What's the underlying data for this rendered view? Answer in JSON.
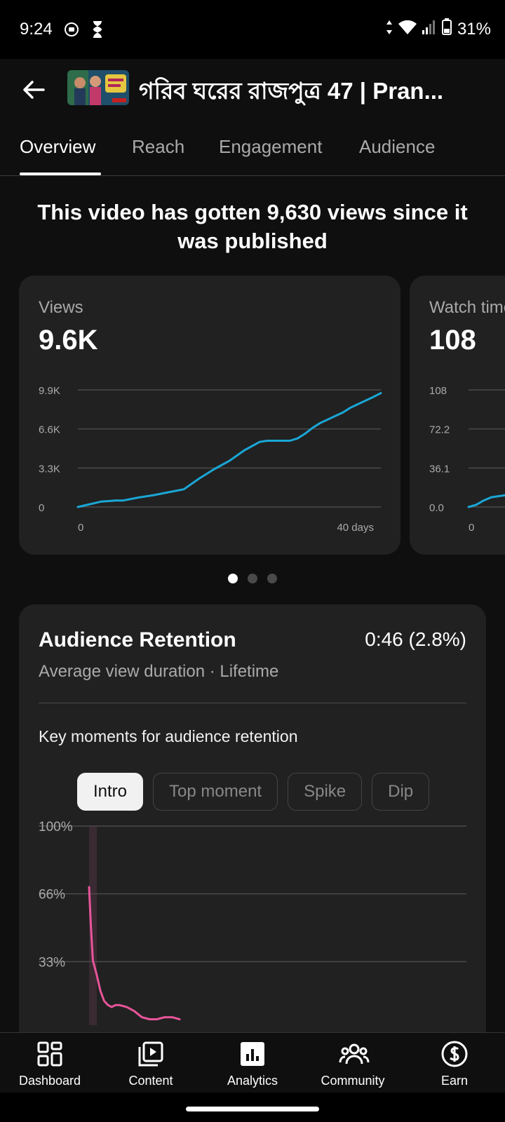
{
  "status_bar": {
    "time": "9:24",
    "battery": "31%"
  },
  "header": {
    "title": "গরিব ঘরের রাজপুত্র 47 | Pran..."
  },
  "tabs": [
    {
      "label": "Overview"
    },
    {
      "label": "Reach"
    },
    {
      "label": "Engagement"
    },
    {
      "label": "Audience"
    }
  ],
  "headline": "This video has gotten 9,630 views since it was published",
  "views_card": {
    "label": "Views",
    "value": "9.6K",
    "chart_data": {
      "type": "line",
      "y_ticks": [
        "9.9K",
        "6.6K",
        "3.3K",
        "0"
      ],
      "x_ticks": [
        "0",
        "40 days"
      ],
      "ylim": [
        0,
        9900
      ],
      "xlim": [
        0,
        40
      ],
      "color": "#1aa7d6",
      "x": [
        0,
        1,
        3,
        5,
        6,
        8,
        10,
        12,
        14,
        16,
        18,
        20,
        22,
        24,
        25,
        26,
        28,
        29,
        30,
        31,
        32,
        33,
        34,
        35,
        36,
        37,
        38,
        39,
        40
      ],
      "y": [
        0,
        150,
        450,
        550,
        550,
        800,
        1000,
        1250,
        1500,
        2400,
        3200,
        3900,
        4800,
        5500,
        5600,
        5600,
        5600,
        5800,
        6200,
        6700,
        7100,
        7400,
        7700,
        8000,
        8400,
        8700,
        9000,
        9300,
        9630
      ]
    }
  },
  "watch_card": {
    "label": "Watch time (hours)",
    "value": "108",
    "chart_data": {
      "type": "line",
      "y_ticks": [
        "108",
        "72.2",
        "36.1",
        "0.0"
      ],
      "x_ticks": [
        "0"
      ],
      "ylim": [
        0,
        108
      ],
      "color": "#1aa7d6",
      "x": [
        0,
        1,
        2,
        3,
        4,
        5
      ],
      "y": [
        0,
        2,
        6,
        9,
        10,
        11
      ]
    }
  },
  "retention": {
    "title": "Audience Retention",
    "value": "0:46 (2.8%)",
    "subtitle": "Average view duration · Lifetime",
    "key_moments": "Key moments for audience retention",
    "chips": [
      {
        "label": "Intro",
        "active": true
      },
      {
        "label": "Top moment",
        "active": false
      },
      {
        "label": "Spike",
        "active": false
      },
      {
        "label": "Dip",
        "active": false
      }
    ],
    "chart_data": {
      "type": "line",
      "y_ticks": [
        "100%",
        "66%",
        "33%"
      ],
      "ylim": [
        0,
        100
      ],
      "xlim": [
        0,
        100
      ],
      "color": "#e8559a",
      "x": [
        0,
        0.5,
        1,
        2,
        3,
        4,
        5,
        6,
        7,
        8,
        10,
        12,
        14,
        16,
        18,
        20,
        22,
        24
      ],
      "y": [
        70,
        50,
        34,
        27,
        19,
        14,
        12,
        11,
        12,
        12,
        11,
        9,
        6,
        5,
        5,
        6,
        6,
        5
      ]
    }
  },
  "nav": [
    {
      "label": "Dashboard",
      "icon": "dashboard-icon"
    },
    {
      "label": "Content",
      "icon": "content-icon"
    },
    {
      "label": "Analytics",
      "icon": "analytics-icon"
    },
    {
      "label": "Community",
      "icon": "community-icon"
    },
    {
      "label": "Earn",
      "icon": "earn-icon"
    }
  ]
}
